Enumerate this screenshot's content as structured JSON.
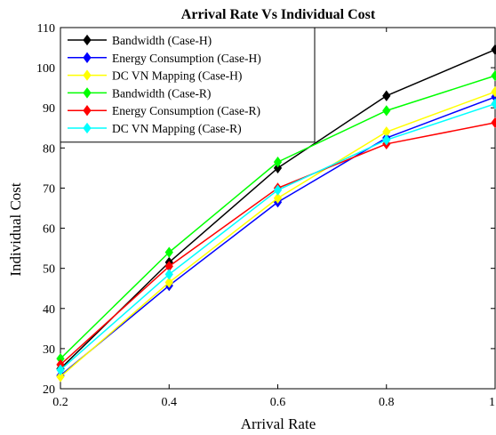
{
  "chart_data": {
    "type": "line",
    "title": "Arrival Rate Vs Individual Cost",
    "xlabel": "Arrival Rate",
    "ylabel": "Individual Cost",
    "x": [
      0.2,
      0.4,
      0.6,
      0.8,
      1
    ],
    "x_tick_labels": [
      "0.2",
      "0.4",
      "0.6",
      "0.8",
      "1"
    ],
    "xlim": [
      0.2,
      1
    ],
    "y_ticks": [
      20,
      30,
      40,
      50,
      60,
      70,
      80,
      90,
      100,
      110
    ],
    "ylim": [
      20,
      110
    ],
    "grid": false,
    "legend_position": "top-left",
    "marker": "diamond",
    "series": [
      {
        "name": "Bandwidth (Case-H)",
        "color": "#000000",
        "values": [
          25,
          51.5,
          75,
          93,
          104.5
        ]
      },
      {
        "name": "Energy Consumption (Case-H)",
        "color": "#0000ff",
        "values": [
          23.3,
          45.7,
          66.5,
          82.5,
          92.7
        ]
      },
      {
        "name": "DC VN Mapping (Case-H)",
        "color": "#ffff00",
        "values": [
          23,
          46.5,
          67.5,
          84,
          94
        ]
      },
      {
        "name": "Bandwidth (Case-R)",
        "color": "#00ff00",
        "values": [
          27.5,
          54,
          76.5,
          89.3,
          98
        ]
      },
      {
        "name": "Energy Consumption (Case-R)",
        "color": "#ff0000",
        "values": [
          26,
          50.5,
          70,
          81,
          86.3
        ]
      },
      {
        "name": "DC VN Mapping (Case-R)",
        "color": "#00ffff",
        "values": [
          24.7,
          48.5,
          69.5,
          82,
          91
        ]
      }
    ]
  }
}
